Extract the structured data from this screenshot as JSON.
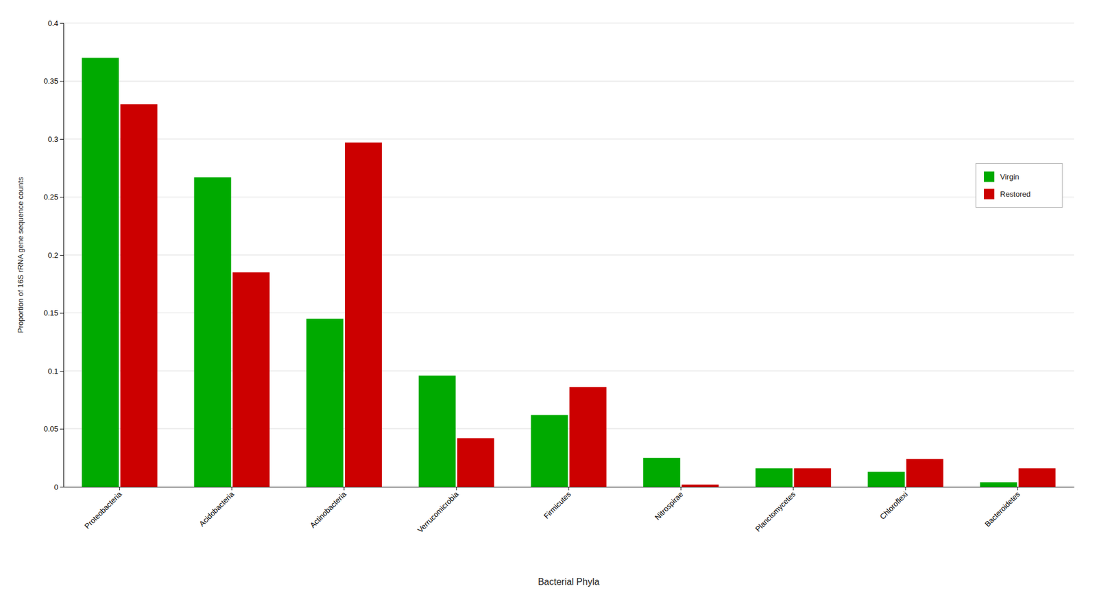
{
  "chart_data": {
    "type": "bar",
    "xlabel": "Bacterial Phyla",
    "ylabel": "Proportion of 16S rRNA gene sequence counts",
    "categories": [
      "Proteobacteria",
      "Acidobacteria",
      "Actinobacteria",
      "Verrucomicrobia",
      "Firmicutes",
      "Nitrospirae",
      "Planctomycetes",
      "Chloroflexi",
      "Bacteroidetes"
    ],
    "series": [
      {
        "name": "Virgin",
        "color": "#00aa00",
        "values": [
          0.37,
          0.267,
          0.145,
          0.096,
          0.062,
          0.025,
          0.016,
          0.013,
          0.004
        ]
      },
      {
        "name": "Restored",
        "color": "#cc0000",
        "values": [
          0.33,
          0.185,
          0.297,
          0.042,
          0.086,
          0.002,
          0.016,
          0.024,
          0.016
        ]
      }
    ],
    "ylim": [
      0,
      0.4
    ],
    "yticks": [
      0,
      0.05,
      0.1,
      0.15,
      0.2,
      0.25,
      0.3,
      0.35,
      0.4
    ],
    "grid": true,
    "legend": "right"
  }
}
